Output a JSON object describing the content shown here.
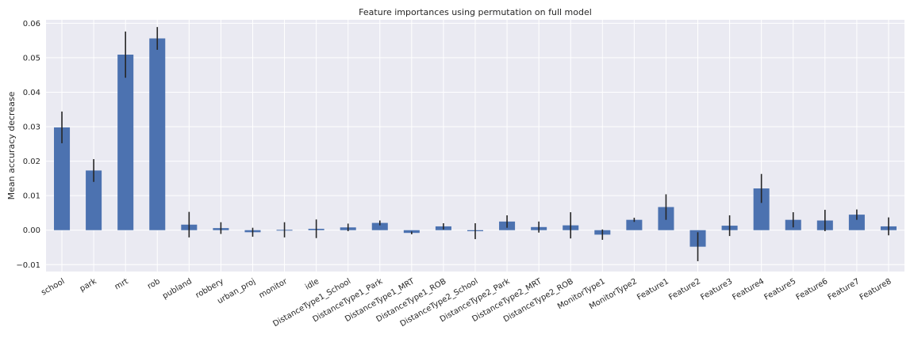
{
  "chart_data": {
    "type": "bar",
    "title": "Feature importances using permutation on full model",
    "xlabel": "",
    "ylabel": "Mean accuracy decrease",
    "ylim": [
      -0.012,
      0.061
    ],
    "yticks": [
      -0.01,
      0.0,
      0.01,
      0.02,
      0.03,
      0.04,
      0.05,
      0.06
    ],
    "ytick_labels": [
      "−0.01",
      "0.00",
      "0.01",
      "0.02",
      "0.03",
      "0.04",
      "0.05",
      "0.06"
    ],
    "grid": true,
    "bar_color": "#4c72b0",
    "background_color": "#eaeaf2",
    "categories": [
      "school",
      "park",
      "mrt",
      "rob",
      "publand",
      "robbery",
      "urban_proj",
      "monitor",
      "idle",
      "DistanceType1_School",
      "DistanceType1_Park",
      "DistanceType1_MRT",
      "DistanceType1_ROB",
      "DistanceType2_School",
      "DistanceType2_Park",
      "DistanceType2_MRT",
      "DistanceType2_ROB",
      "MonitorType1",
      "MonitorType2",
      "Feature1",
      "Feature2",
      "Feature3",
      "Feature4",
      "Feature5",
      "Feature6",
      "Feature7",
      "Feature8"
    ],
    "values": [
      0.0298,
      0.0173,
      0.0509,
      0.0556,
      0.0016,
      0.0006,
      -0.0006,
      0.0001,
      0.0004,
      0.0008,
      0.0021,
      -0.0008,
      0.0011,
      -0.0003,
      0.0025,
      0.0009,
      0.0014,
      -0.0013,
      0.003,
      0.0067,
      -0.0048,
      0.0013,
      0.0121,
      0.003,
      0.0028,
      0.0045,
      0.0011
    ],
    "errors": [
      0.0046,
      0.0033,
      0.0067,
      0.0033,
      0.0037,
      0.0017,
      0.0013,
      0.0022,
      0.0027,
      0.0011,
      0.0007,
      0.0004,
      0.0009,
      0.0023,
      0.0018,
      0.0016,
      0.0038,
      0.0015,
      0.0006,
      0.0037,
      0.0042,
      0.003,
      0.0042,
      0.0022,
      0.0031,
      0.0015,
      0.0026
    ]
  }
}
